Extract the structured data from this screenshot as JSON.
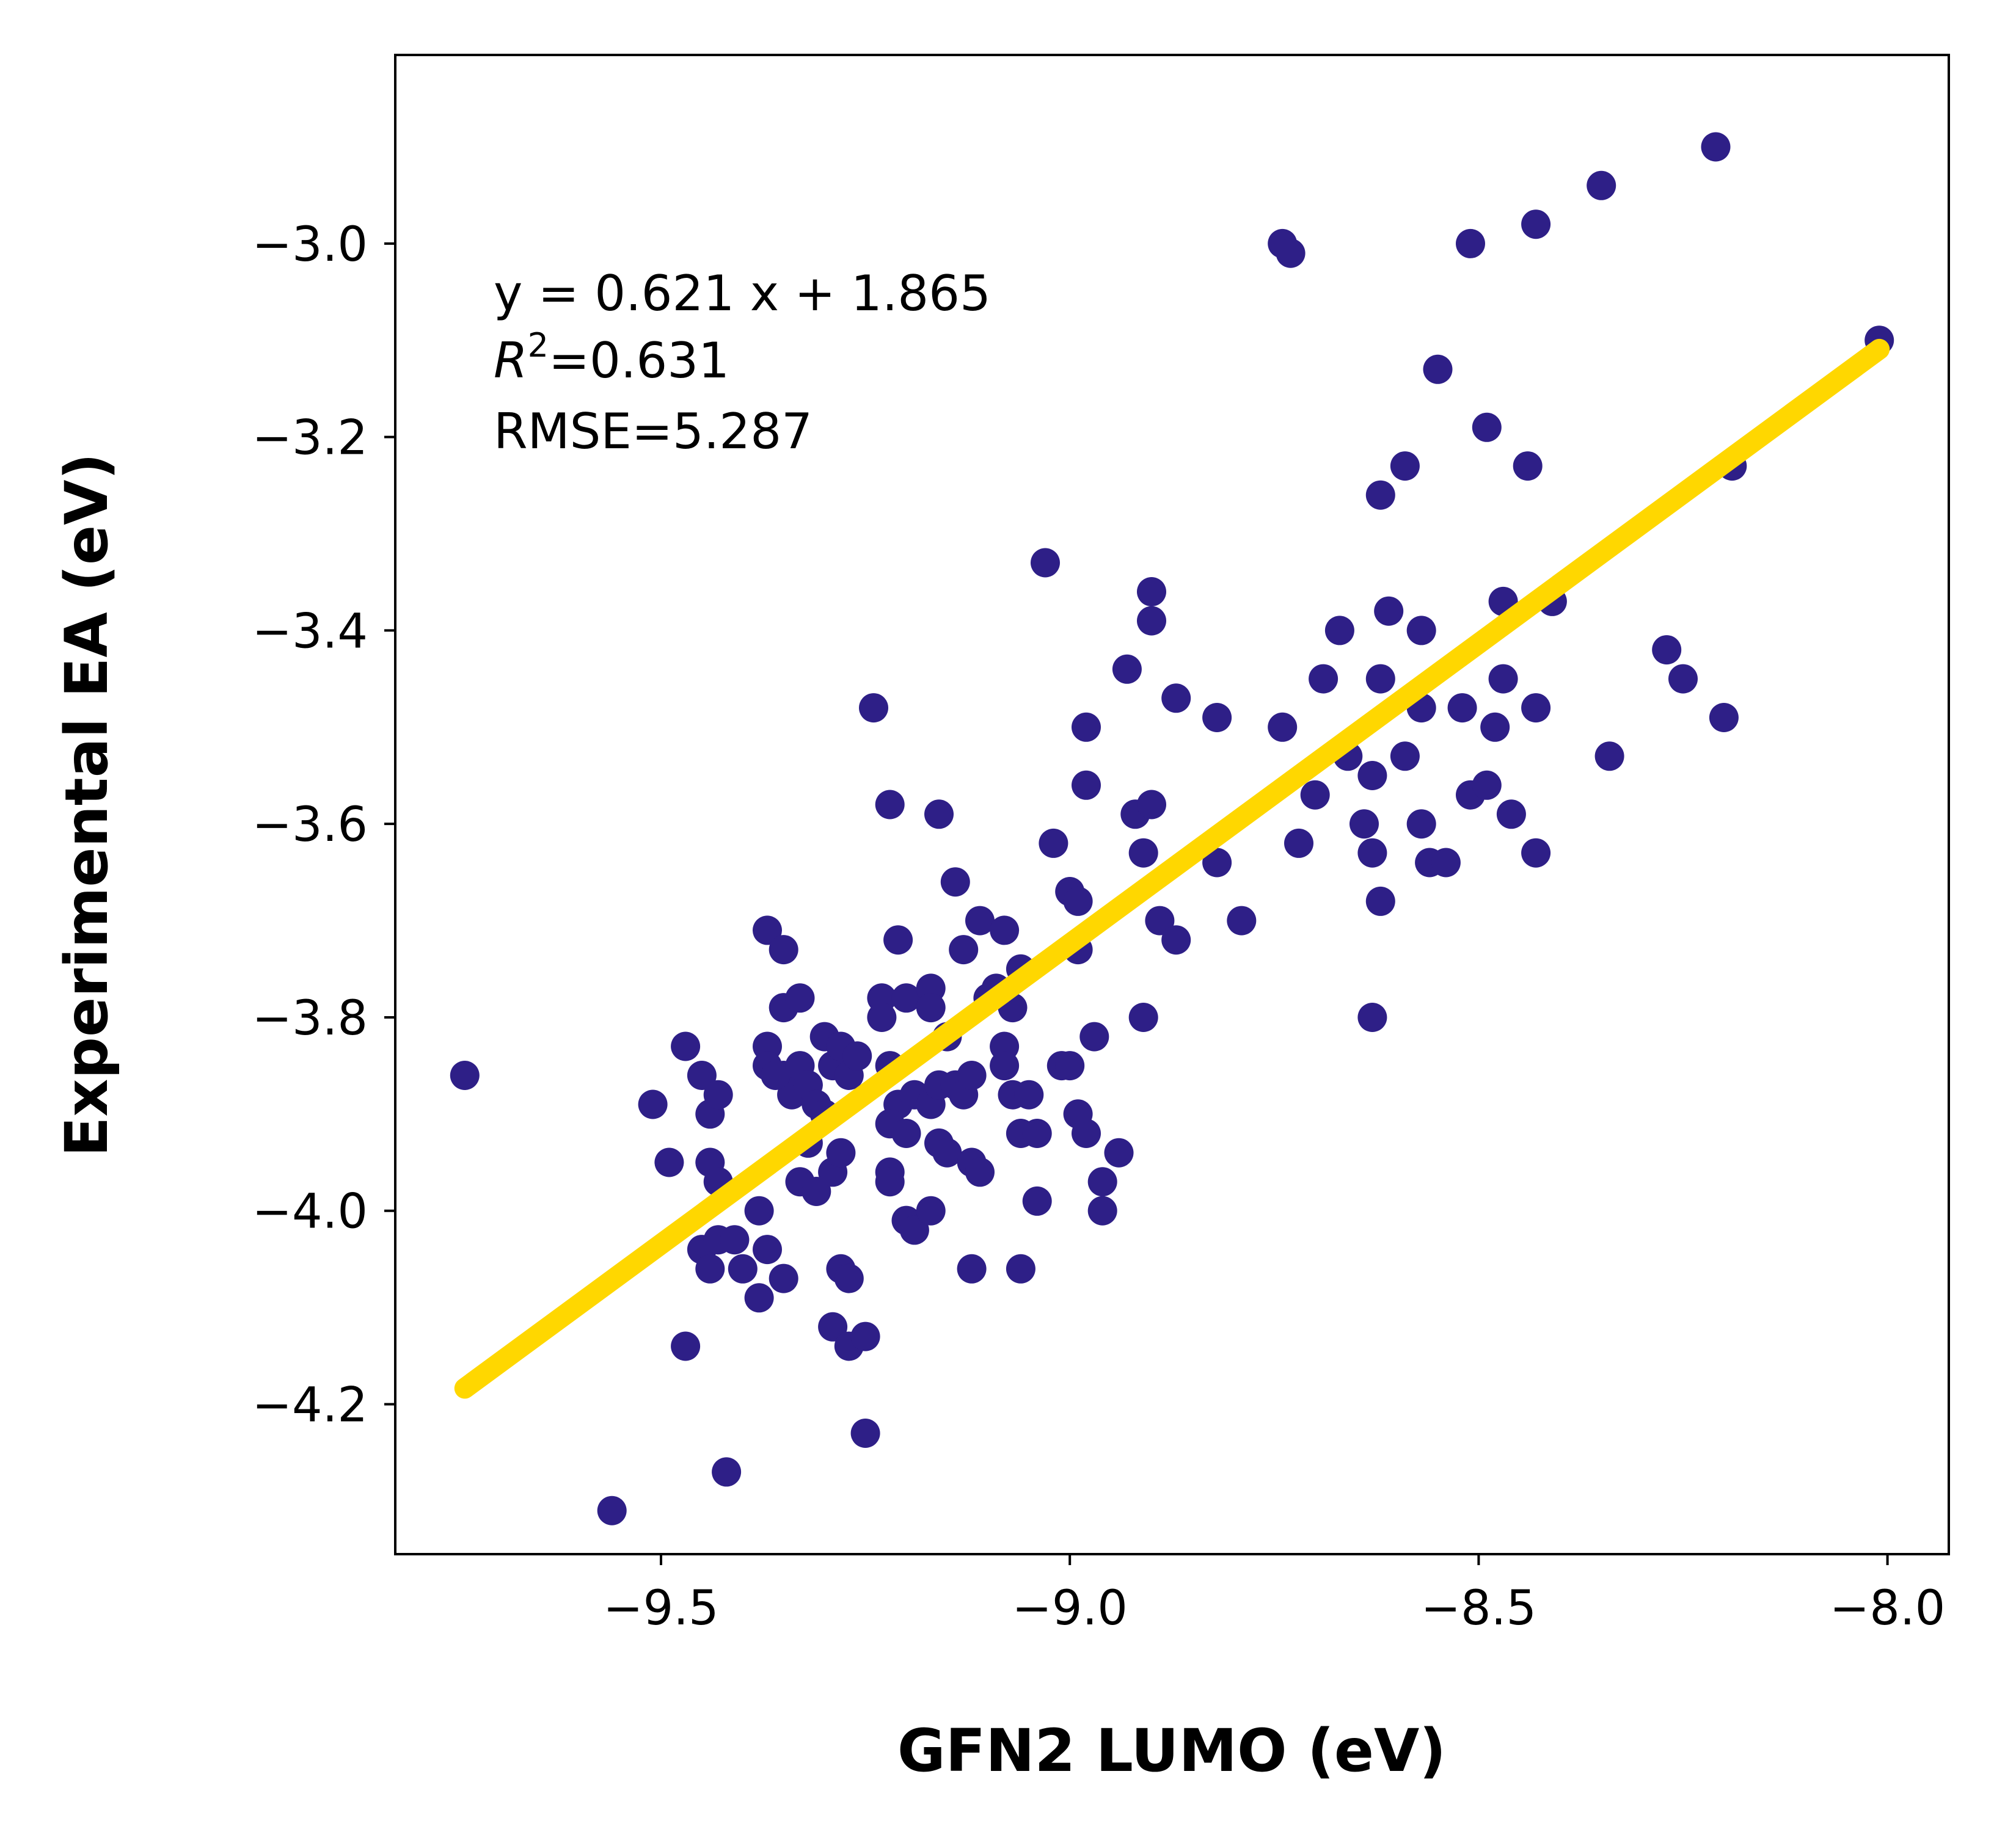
{
  "chart_data": {
    "type": "scatter",
    "xlabel": "GFN2 LUMO (eV)",
    "ylabel": "Experimental EA (eV)",
    "xlim": [
      -9.825,
      -7.925
    ],
    "ylim": [
      -4.355,
      -2.805
    ],
    "xticks": [
      -9.5,
      -9.0,
      -8.5,
      -8.0
    ],
    "xtick_labels": [
      "−9.5",
      "−9.0",
      "−8.5",
      "−8.0"
    ],
    "yticks": [
      -4.2,
      -4.0,
      -3.8,
      -3.6,
      -3.4,
      -3.2,
      -3.0
    ],
    "ytick_labels": [
      "−4.2",
      "−4.0",
      "−3.8",
      "−3.6",
      "−3.4",
      "−3.2",
      "−3.0"
    ],
    "grid": false,
    "colors": {
      "points": "#2e1f87",
      "fit_line": "#ffd700"
    },
    "fit_line": {
      "slope": 0.621,
      "intercept": 1.865,
      "x_range": [
        -9.74,
        -8.01
      ]
    },
    "annotations": {
      "equation": "y = 0.621 x + 1.865",
      "r2_label": "R",
      "r2_sup": "2",
      "r2_value": "=0.631",
      "rmse": "RMSE=5.287"
    },
    "points": [
      [
        -9.74,
        -3.86
      ],
      [
        -9.56,
        -4.31
      ],
      [
        -9.51,
        -3.89
      ],
      [
        -9.49,
        -3.95
      ],
      [
        -9.47,
        -3.83
      ],
      [
        -9.45,
        -3.86
      ],
      [
        -9.44,
        -3.9
      ],
      [
        -9.43,
        -3.88
      ],
      [
        -9.47,
        -4.14
      ],
      [
        -9.42,
        -4.27
      ],
      [
        -9.44,
        -3.95
      ],
      [
        -9.43,
        -3.97
      ],
      [
        -9.45,
        -4.04
      ],
      [
        -9.43,
        -4.03
      ],
      [
        -9.41,
        -4.03
      ],
      [
        -9.44,
        -4.06
      ],
      [
        -9.38,
        -4.0
      ],
      [
        -9.4,
        -4.06
      ],
      [
        -9.38,
        -4.09
      ],
      [
        -9.37,
        -4.04
      ],
      [
        -9.35,
        -4.07
      ],
      [
        -9.37,
        -3.71
      ],
      [
        -9.35,
        -3.73
      ],
      [
        -9.35,
        -3.79
      ],
      [
        -9.33,
        -3.78
      ],
      [
        -9.37,
        -3.83
      ],
      [
        -9.37,
        -3.85
      ],
      [
        -9.35,
        -3.86
      ],
      [
        -9.34,
        -3.88
      ],
      [
        -9.36,
        -3.86
      ],
      [
        -9.33,
        -3.85
      ],
      [
        -9.32,
        -3.87
      ],
      [
        -9.31,
        -3.89
      ],
      [
        -9.3,
        -3.82
      ],
      [
        -9.29,
        -3.85
      ],
      [
        -9.28,
        -3.83
      ],
      [
        -9.27,
        -3.86
      ],
      [
        -9.26,
        -3.84
      ],
      [
        -9.33,
        -3.97
      ],
      [
        -9.32,
        -3.93
      ],
      [
        -9.31,
        -3.98
      ],
      [
        -9.3,
        -3.9
      ],
      [
        -9.29,
        -3.96
      ],
      [
        -9.28,
        -3.94
      ],
      [
        -9.29,
        -4.12
      ],
      [
        -9.28,
        -4.06
      ],
      [
        -9.27,
        -4.07
      ],
      [
        -9.27,
        -4.14
      ],
      [
        -9.25,
        -4.13
      ],
      [
        -9.25,
        -4.23
      ],
      [
        -9.24,
        -3.48
      ],
      [
        -9.22,
        -3.58
      ],
      [
        -9.21,
        -3.72
      ],
      [
        -9.23,
        -3.78
      ],
      [
        -9.23,
        -3.8
      ],
      [
        -9.22,
        -3.85
      ],
      [
        -9.2,
        -3.78
      ],
      [
        -9.21,
        -3.89
      ],
      [
        -9.22,
        -3.91
      ],
      [
        -9.19,
        -3.88
      ],
      [
        -9.2,
        -3.92
      ],
      [
        -9.22,
        -3.96
      ],
      [
        -9.22,
        -3.97
      ],
      [
        -9.2,
        -4.01
      ],
      [
        -9.19,
        -4.02
      ],
      [
        -9.17,
        -3.77
      ],
      [
        -9.17,
        -3.79
      ],
      [
        -9.16,
        -3.59
      ],
      [
        -9.15,
        -3.82
      ],
      [
        -9.17,
        -3.89
      ],
      [
        -9.16,
        -3.87
      ],
      [
        -9.16,
        -3.93
      ],
      [
        -9.14,
        -3.87
      ],
      [
        -9.13,
        -3.88
      ],
      [
        -9.15,
        -3.94
      ],
      [
        -9.17,
        -4.0
      ],
      [
        -9.14,
        -3.66
      ],
      [
        -9.13,
        -3.73
      ],
      [
        -9.11,
        -3.7
      ],
      [
        -9.12,
        -3.86
      ],
      [
        -9.12,
        -3.95
      ],
      [
        -9.11,
        -3.96
      ],
      [
        -9.12,
        -4.06
      ],
      [
        -9.1,
        -3.78
      ],
      [
        -9.09,
        -3.77
      ],
      [
        -9.08,
        -3.71
      ],
      [
        -9.08,
        -3.83
      ],
      [
        -9.08,
        -3.85
      ],
      [
        -9.07,
        -3.79
      ],
      [
        -9.07,
        -3.88
      ],
      [
        -9.06,
        -3.75
      ],
      [
        -9.05,
        -3.88
      ],
      [
        -9.06,
        -3.92
      ],
      [
        -9.04,
        -3.92
      ],
      [
        -9.06,
        -4.06
      ],
      [
        -9.04,
        -3.99
      ],
      [
        -9.03,
        -3.33
      ],
      [
        -9.02,
        -3.62
      ],
      [
        -9.01,
        -3.85
      ],
      [
        -9.0,
        -3.85
      ],
      [
        -9.0,
        -3.67
      ],
      [
        -8.99,
        -3.68
      ],
      [
        -8.99,
        -3.73
      ],
      [
        -8.98,
        -3.5
      ],
      [
        -8.98,
        -3.56
      ],
      [
        -8.99,
        -3.9
      ],
      [
        -8.98,
        -3.92
      ],
      [
        -8.97,
        -3.82
      ],
      [
        -8.96,
        -3.97
      ],
      [
        -8.96,
        -4.0
      ],
      [
        -8.94,
        -3.94
      ],
      [
        -8.93,
        -3.44
      ],
      [
        -8.92,
        -3.59
      ],
      [
        -8.91,
        -3.63
      ],
      [
        -8.9,
        -3.58
      ],
      [
        -8.9,
        -3.39
      ],
      [
        -8.9,
        -3.36
      ],
      [
        -8.91,
        -3.8
      ],
      [
        -8.89,
        -3.7
      ],
      [
        -8.87,
        -3.72
      ],
      [
        -8.87,
        -3.47
      ],
      [
        -8.82,
        -3.49
      ],
      [
        -8.82,
        -3.64
      ],
      [
        -8.79,
        -3.7
      ],
      [
        -8.74,
        -3.0
      ],
      [
        -8.73,
        -3.01
      ],
      [
        -8.74,
        -3.5
      ],
      [
        -8.72,
        -3.62
      ],
      [
        -8.7,
        -3.57
      ],
      [
        -8.69,
        -3.45
      ],
      [
        -8.67,
        -3.4
      ],
      [
        -8.66,
        -3.53
      ],
      [
        -8.64,
        -3.6
      ],
      [
        -8.63,
        -3.55
      ],
      [
        -8.63,
        -3.63
      ],
      [
        -8.62,
        -3.68
      ],
      [
        -8.63,
        -3.8
      ],
      [
        -8.62,
        -3.26
      ],
      [
        -8.62,
        -3.45
      ],
      [
        -8.61,
        -3.38
      ],
      [
        -8.59,
        -3.23
      ],
      [
        -8.59,
        -3.53
      ],
      [
        -8.57,
        -3.4
      ],
      [
        -8.57,
        -3.48
      ],
      [
        -8.57,
        -3.6
      ],
      [
        -8.56,
        -3.64
      ],
      [
        -8.55,
        -3.13
      ],
      [
        -8.54,
        -3.64
      ],
      [
        -8.52,
        -3.48
      ],
      [
        -8.51,
        -3.57
      ],
      [
        -8.51,
        -3.0
      ],
      [
        -8.49,
        -3.56
      ],
      [
        -8.49,
        -3.19
      ],
      [
        -8.48,
        -3.5
      ],
      [
        -8.47,
        -3.37
      ],
      [
        -8.47,
        -3.45
      ],
      [
        -8.46,
        -3.59
      ],
      [
        -8.44,
        -3.23
      ],
      [
        -8.43,
        -3.63
      ],
      [
        -8.43,
        -3.48
      ],
      [
        -8.43,
        -2.98
      ],
      [
        -8.41,
        -3.37
      ],
      [
        -8.35,
        -2.94
      ],
      [
        -8.34,
        -3.53
      ],
      [
        -8.27,
        -3.42
      ],
      [
        -8.25,
        -3.45
      ],
      [
        -8.21,
        -2.9
      ],
      [
        -8.2,
        -3.49
      ],
      [
        -8.19,
        -3.23
      ],
      [
        -8.01,
        -3.1
      ]
    ]
  }
}
